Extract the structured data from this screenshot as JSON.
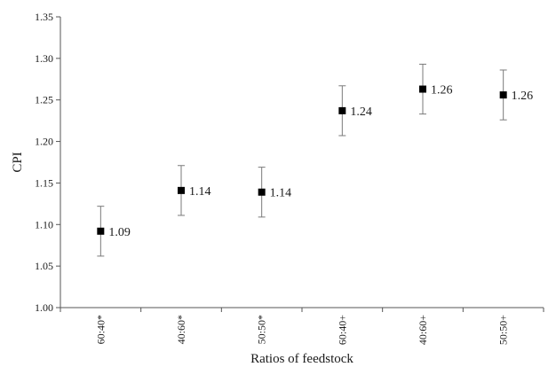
{
  "chart_data": {
    "type": "scatter",
    "title": "",
    "xlabel": "Ratios of feedstock",
    "ylabel": "CPI",
    "ylim": [
      1.0,
      1.35
    ],
    "yticks": [
      "1.00",
      "1.05",
      "1.10",
      "1.15",
      "1.20",
      "1.25",
      "1.30",
      "1.35"
    ],
    "categories": [
      "60:40*",
      "40:60*",
      "50:50*",
      "60:40+",
      "40:60+",
      "50:50+"
    ],
    "values": [
      1.092,
      1.141,
      1.139,
      1.237,
      1.263,
      1.256
    ],
    "errors": [
      0.03,
      0.03,
      0.03,
      0.03,
      0.03,
      0.03
    ],
    "data_labels": [
      "1.09",
      "1.14",
      "1.14",
      "1.24",
      "1.26",
      "1.26"
    ],
    "grid": false,
    "marker": "square",
    "marker_color": "#000000"
  }
}
